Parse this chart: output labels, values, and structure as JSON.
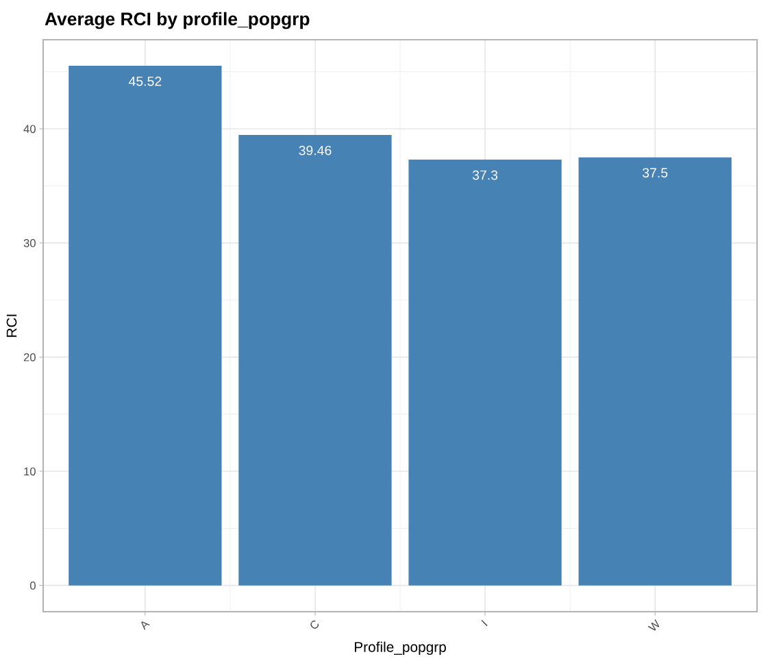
{
  "chart_data": {
    "type": "bar",
    "title": "Average RCI by profile_popgrp",
    "xlabel": "Profile_popgrp",
    "ylabel": "RCI",
    "categories": [
      "A",
      "C",
      "I",
      "W"
    ],
    "values": [
      45.52,
      39.46,
      37.3,
      37.5
    ],
    "color": "#4682b4",
    "ylim": [
      -2.3,
      47.8
    ],
    "yticks": [
      0,
      10,
      20,
      30,
      40
    ],
    "grid": true,
    "data_labels": true
  }
}
